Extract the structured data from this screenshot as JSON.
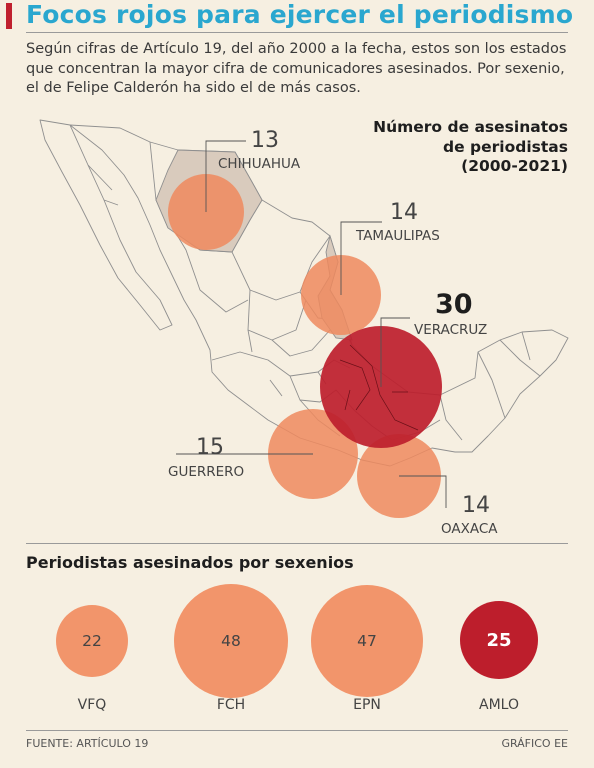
{
  "header": {
    "title": "Focos rojos para ejercer el periodismo",
    "subtitle": "Según cifras de Artículo 19, del año 2000 a la fecha, estos son los estados que concentran la mayor cifra de comunicadores asesinados. Por sexenio, el de Felipe Calderón ha sido el de más casos."
  },
  "map": {
    "title_lines": [
      "Número de asesinatos",
      "de periodistas",
      "(2000-2021)"
    ],
    "states": [
      {
        "id": "chihuahua",
        "name": "CHIHUAHUA",
        "value": "13",
        "color": "#ee8a5e"
      },
      {
        "id": "tamaulipas",
        "name": "TAMAULIPAS",
        "value": "14",
        "color": "#ee8a5e"
      },
      {
        "id": "veracruz",
        "name": "VERACRUZ",
        "value": "30",
        "color": "#bd1e2c"
      },
      {
        "id": "guerrero",
        "name": "GUERRERO",
        "value": "15",
        "color": "#ee8a5e"
      },
      {
        "id": "oaxaca",
        "name": "OAXACA",
        "value": "14",
        "color": "#ee8a5e"
      }
    ]
  },
  "sexenios": {
    "title": "Periodistas asesinados por sexenios",
    "items": [
      {
        "label": "VFQ",
        "value": "22",
        "color": "#f2956b"
      },
      {
        "label": "FCH",
        "value": "48",
        "color": "#f2956b"
      },
      {
        "label": "EPN",
        "value": "47",
        "color": "#f2956b"
      },
      {
        "label": "AMLO",
        "value": "25",
        "color": "#bd1e2c"
      }
    ]
  },
  "footer": {
    "source": "FUENTE: ARTÍCULO 19",
    "credit": "GRÁFICO EE"
  }
}
